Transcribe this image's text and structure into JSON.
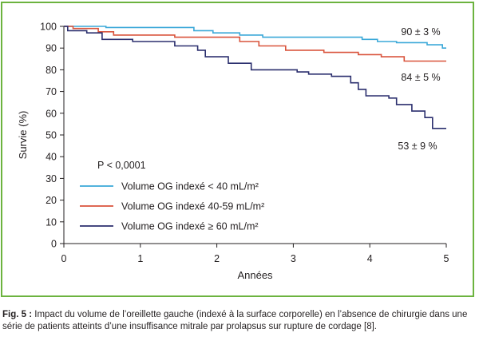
{
  "chart_data": {
    "type": "line",
    "subtype": "kaplan-meier step survival curves",
    "title": "",
    "xlabel": "Années",
    "ylabel": "Survie (%)",
    "xlim": [
      0,
      5
    ],
    "ylim": [
      0,
      100
    ],
    "x_ticks": [
      0,
      1,
      2,
      3,
      4,
      5
    ],
    "y_ticks": [
      0,
      10,
      20,
      30,
      40,
      50,
      60,
      70,
      80,
      90,
      100
    ],
    "grid": false,
    "legend_position": "lower-left inside plot",
    "annotation": "P < 0,0001",
    "series": [
      {
        "name": "Volume OG indexé < 40 mL/m²",
        "color": "#3aa8d8",
        "end_label": "90 ± 3 %",
        "points": [
          [
            0,
            100
          ],
          [
            0.55,
            100
          ],
          [
            0.55,
            99.5
          ],
          [
            1.7,
            99.5
          ],
          [
            1.7,
            98
          ],
          [
            1.95,
            98
          ],
          [
            1.95,
            97
          ],
          [
            2.3,
            97
          ],
          [
            2.3,
            96
          ],
          [
            2.6,
            96
          ],
          [
            2.6,
            95
          ],
          [
            3.9,
            95
          ],
          [
            3.9,
            94
          ],
          [
            4.1,
            94
          ],
          [
            4.1,
            93
          ],
          [
            4.35,
            93
          ],
          [
            4.35,
            92.5
          ],
          [
            4.75,
            92.5
          ],
          [
            4.75,
            91.5
          ],
          [
            4.95,
            91.5
          ],
          [
            4.95,
            90
          ],
          [
            5,
            90
          ]
        ]
      },
      {
        "name": "Volume OG indexé 40-59 mL/m²",
        "color": "#d9533b",
        "end_label": "84 ± 5 %",
        "points": [
          [
            0,
            100
          ],
          [
            0.12,
            100
          ],
          [
            0.12,
            99
          ],
          [
            0.45,
            99
          ],
          [
            0.45,
            97.5
          ],
          [
            0.65,
            97.5
          ],
          [
            0.65,
            96
          ],
          [
            1.45,
            96
          ],
          [
            1.45,
            95
          ],
          [
            2.3,
            95
          ],
          [
            2.3,
            93
          ],
          [
            2.55,
            93
          ],
          [
            2.55,
            91
          ],
          [
            2.9,
            91
          ],
          [
            2.9,
            89
          ],
          [
            3.4,
            89
          ],
          [
            3.4,
            88
          ],
          [
            3.85,
            88
          ],
          [
            3.85,
            87
          ],
          [
            4.15,
            87
          ],
          [
            4.15,
            86
          ],
          [
            4.45,
            86
          ],
          [
            4.45,
            84
          ],
          [
            5,
            84
          ]
        ]
      },
      {
        "name": "Volume OG indexé ≥ 60 mL/m²",
        "color": "#2b2f6e",
        "end_label": "53 ± 9 %",
        "points": [
          [
            0,
            100
          ],
          [
            0.05,
            100
          ],
          [
            0.05,
            98
          ],
          [
            0.3,
            98
          ],
          [
            0.3,
            97
          ],
          [
            0.5,
            97
          ],
          [
            0.5,
            94
          ],
          [
            0.9,
            94
          ],
          [
            0.9,
            93
          ],
          [
            1.45,
            93
          ],
          [
            1.45,
            91
          ],
          [
            1.75,
            91
          ],
          [
            1.75,
            89
          ],
          [
            1.85,
            89
          ],
          [
            1.85,
            86
          ],
          [
            2.15,
            86
          ],
          [
            2.15,
            83
          ],
          [
            2.45,
            83
          ],
          [
            2.45,
            80
          ],
          [
            3.05,
            80
          ],
          [
            3.05,
            79
          ],
          [
            3.2,
            79
          ],
          [
            3.2,
            78
          ],
          [
            3.5,
            78
          ],
          [
            3.5,
            77
          ],
          [
            3.75,
            77
          ],
          [
            3.75,
            74
          ],
          [
            3.85,
            74
          ],
          [
            3.85,
            71
          ],
          [
            3.95,
            71
          ],
          [
            3.95,
            68
          ],
          [
            4.25,
            68
          ],
          [
            4.25,
            67
          ],
          [
            4.35,
            67
          ],
          [
            4.35,
            64
          ],
          [
            4.55,
            64
          ],
          [
            4.55,
            61
          ],
          [
            4.72,
            61
          ],
          [
            4.72,
            58
          ],
          [
            4.82,
            58
          ],
          [
            4.82,
            53
          ],
          [
            5,
            53
          ]
        ]
      }
    ]
  },
  "legend": {
    "pvalue": "P < 0,0001",
    "items": [
      {
        "label": "Volume OG indexé < 40 mL/m²",
        "color": "#3aa8d8"
      },
      {
        "label": "Volume OG indexé 40-59 mL/m²",
        "color": "#d9533b"
      },
      {
        "label": "Volume OG indexé ≥ 60 mL/m²",
        "color": "#2b2f6e"
      }
    ]
  },
  "caption": {
    "label": "Fig. 5 :",
    "text": " Impact du volume de l’oreillette gauche (indexé à la surface corporelle) en l’absence de chirurgie dans une série de patients atteints d’une insuffisance mitrale par prolapsus sur rupture de cordage [8]."
  }
}
